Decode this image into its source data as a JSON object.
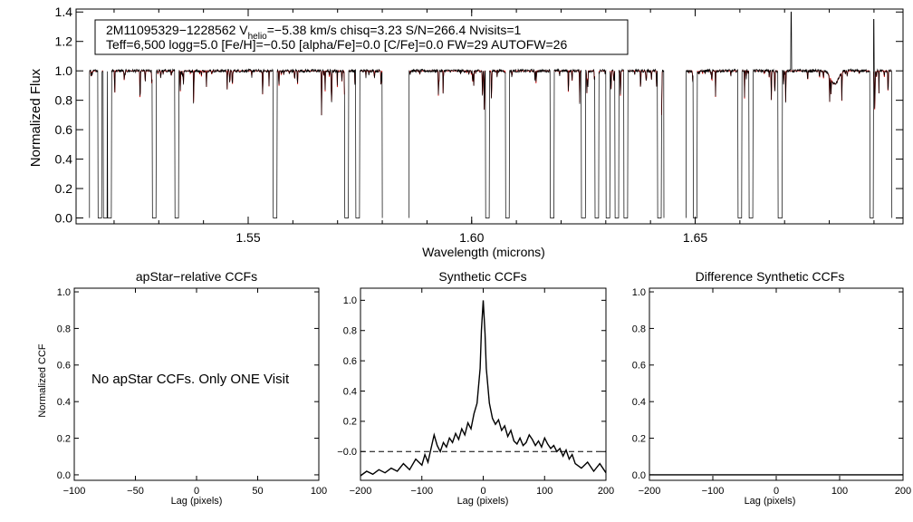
{
  "chart_data": [
    {
      "type": "line",
      "panel": "spectrum",
      "info_line1_prefix": "2M11095329−1228562  V",
      "info_line1_sub": "helio",
      "info_line1_suffix": "=−5.38 km/s  chisq=3.23  S/N=266.4  Nvisits=1",
      "info_line2": "Teff=6,500 logg=5.0 [Fe/H]=−0.50 [alpha/Fe]=0.0 [C/Fe]=0.0 FW=29 AUTOFW=26",
      "xlabel": "Wavelength (microns)",
      "ylabel": "Normalized Flux",
      "xlim": [
        1.5115,
        1.6965
      ],
      "ylim": [
        -0.04,
        1.42
      ],
      "xticks": [
        "1.55",
        "1.60",
        "1.65"
      ],
      "xtick_values": [
        1.55,
        1.6,
        1.65
      ],
      "yticks": [
        "0.0",
        "0.2",
        "0.4",
        "0.6",
        "0.8",
        "1.0",
        "1.2",
        "1.4"
      ],
      "ytick_values": [
        0.0,
        0.2,
        0.4,
        0.6,
        0.8,
        1.0,
        1.2,
        1.4
      ],
      "chips": [
        [
          1.5145,
          1.58
        ],
        [
          1.586,
          1.643
        ],
        [
          1.648,
          1.694
        ]
      ],
      "gaps": [
        1.5168,
        1.518,
        1.519,
        1.529,
        1.534,
        1.556,
        1.572,
        1.5745,
        1.6035,
        1.608,
        1.618,
        1.625,
        1.628,
        1.6305,
        1.6325,
        1.6345,
        1.642,
        1.65,
        1.66,
        1.6625,
        1.669,
        1.6895
      ],
      "spikes": [
        1.6715,
        1.69
      ],
      "series": [
        {
          "color": "#000000"
        },
        {
          "color": "#dd0000"
        }
      ]
    },
    {
      "type": "line",
      "panel": "apstar",
      "title": "apStar−relative CCFs",
      "message": "No apStar CCFs.  Only ONE Visit",
      "xlabel": "Lag (pixels)",
      "ylabel": "Normalized CCF",
      "xlim": [
        -100,
        100
      ],
      "ylim": [
        -0.03,
        1.02
      ],
      "xticks": [
        "−100",
        "−50",
        "0",
        "50",
        "100"
      ],
      "xtick_values": [
        -100,
        -50,
        0,
        50,
        100
      ],
      "yticks": [
        "0.0",
        "0.2",
        "0.4",
        "0.6",
        "0.8",
        "1.0"
      ],
      "ytick_values": [
        0.0,
        0.2,
        0.4,
        0.6,
        0.8,
        1.0
      ]
    },
    {
      "type": "line",
      "panel": "synthetic",
      "title": "Synthetic CCFs",
      "xlabel": "Lag (pixels)",
      "xlim": [
        -200,
        200
      ],
      "ylim": [
        -0.19,
        1.08
      ],
      "xticks": [
        "−200",
        "−100",
        "0",
        "100",
        "200"
      ],
      "xtick_values": [
        -200,
        -100,
        0,
        100,
        200
      ],
      "yticks": [
        "−0.0",
        "0.2",
        "0.4",
        "0.6",
        "0.8",
        "1.0"
      ],
      "ytick_values": [
        0.0,
        0.2,
        0.4,
        0.6,
        0.8,
        1.0
      ],
      "zero_line": 0.0,
      "series": [
        {
          "x": [
            -200,
            -190,
            -180,
            -170,
            -160,
            -150,
            -140,
            -130,
            -120,
            -110,
            -100,
            -95,
            -90,
            -85,
            -80,
            -75,
            -70,
            -65,
            -60,
            -55,
            -50,
            -45,
            -40,
            -35,
            -30,
            -25,
            -20,
            -15,
            -10,
            -5,
            -3,
            0,
            3,
            5,
            10,
            15,
            20,
            25,
            30,
            35,
            40,
            45,
            50,
            55,
            60,
            65,
            70,
            75,
            80,
            85,
            90,
            95,
            100,
            105,
            110,
            115,
            120,
            125,
            130,
            135,
            140,
            145,
            150,
            160,
            170,
            180,
            190,
            200
          ],
          "y": [
            -0.16,
            -0.13,
            -0.15,
            -0.12,
            -0.14,
            -0.11,
            -0.13,
            -0.08,
            -0.12,
            -0.05,
            -0.09,
            -0.02,
            -0.07,
            0.02,
            0.11,
            0.04,
            0.0,
            0.06,
            0.03,
            0.09,
            0.06,
            0.12,
            0.08,
            0.15,
            0.11,
            0.19,
            0.15,
            0.25,
            0.32,
            0.55,
            0.8,
            1.0,
            0.78,
            0.55,
            0.32,
            0.22,
            0.18,
            0.21,
            0.14,
            0.17,
            0.1,
            0.14,
            0.07,
            0.05,
            0.09,
            0.04,
            0.06,
            0.11,
            0.08,
            0.04,
            0.07,
            0.03,
            0.09,
            0.05,
            0.02,
            0.04,
            0.0,
            0.02,
            -0.03,
            0.01,
            -0.05,
            -0.02,
            -0.08,
            -0.11,
            -0.07,
            -0.13,
            -0.08,
            -0.14
          ]
        }
      ]
    },
    {
      "type": "line",
      "panel": "difference",
      "title": "Difference Synthetic CCFs",
      "xlabel": "Lag (pixels)",
      "xlim": [
        -200,
        200
      ],
      "ylim": [
        -0.03,
        1.02
      ],
      "xticks": [
        "−200",
        "−100",
        "0",
        "100",
        "200"
      ],
      "xtick_values": [
        -200,
        -100,
        0,
        100,
        200
      ],
      "yticks": [
        "0.0",
        "0.2",
        "0.4",
        "0.6",
        "0.8",
        "1.0"
      ],
      "ytick_values": [
        0.0,
        0.2,
        0.4,
        0.6,
        0.8,
        1.0
      ],
      "series": [
        {
          "x": [
            -200,
            200
          ],
          "y": [
            0.0,
            0.0
          ]
        }
      ]
    }
  ]
}
